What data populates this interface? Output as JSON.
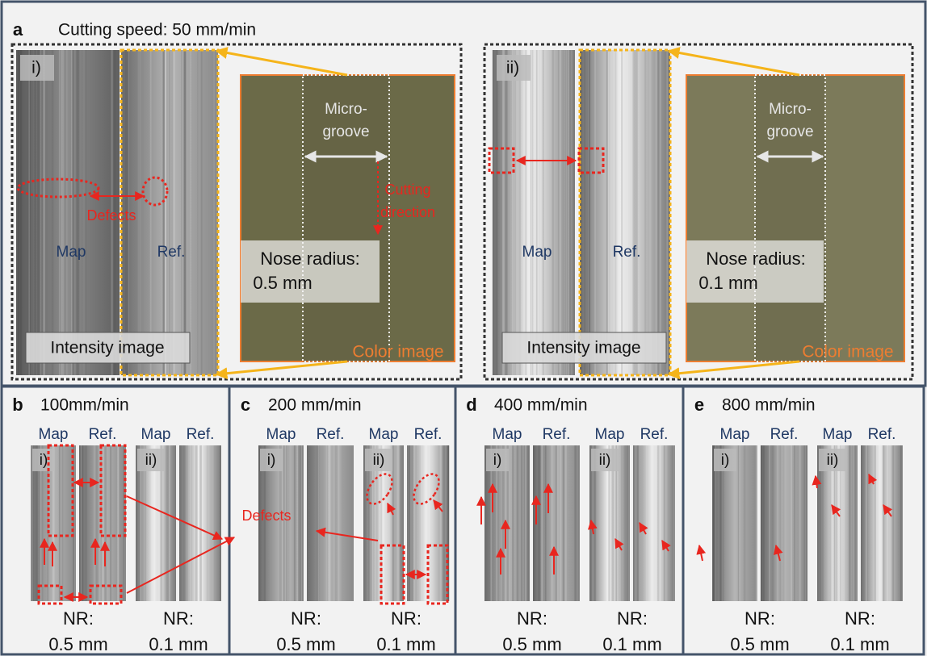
{
  "panel_a": {
    "label": "a",
    "title": "Cutting speed: 50 mm/min",
    "subpanels": [
      {
        "label": "i)",
        "map": "Map",
        "ref": "Ref.",
        "defects": "Defects",
        "groove": [
          "Micro-",
          "groove"
        ],
        "direction": [
          "Cutting",
          "direction"
        ],
        "nose": [
          "Nose radius:",
          "0.5 mm"
        ],
        "intensity": "Intensity image",
        "color": "Color image"
      },
      {
        "label": "ii)",
        "map": "Map",
        "ref": "Ref.",
        "groove": [
          "Micro-",
          "groove"
        ],
        "nose": [
          "Nose radius:",
          "0.1 mm"
        ],
        "intensity": "Intensity image",
        "color": "Color image"
      }
    ]
  },
  "panels": [
    {
      "label": "b",
      "speed": "100mm/min",
      "cols": [
        {
          "label": "i)",
          "map": "Map",
          "ref": "Ref.",
          "nr": [
            "NR:",
            "0.5 mm"
          ]
        },
        {
          "label": "ii)",
          "map": "Map",
          "ref": "Ref.",
          "nr": [
            "NR:",
            "0.1 mm"
          ]
        }
      ]
    },
    {
      "label": "c",
      "speed": "200 mm/min",
      "defects": "Defects",
      "cols": [
        {
          "label": "i)",
          "map": "Map",
          "ref": "Ref.",
          "nr": [
            "NR:",
            "0.5 mm"
          ]
        },
        {
          "label": "ii)",
          "map": "Map",
          "ref": "Ref.",
          "nr": [
            "NR:",
            "0.1 mm"
          ]
        }
      ]
    },
    {
      "label": "d",
      "speed": "400 mm/min",
      "cols": [
        {
          "label": "i)",
          "map": "Map",
          "ref": "Ref.",
          "nr": [
            "NR:",
            "0.5 mm"
          ]
        },
        {
          "label": "ii)",
          "map": "Map",
          "ref": "Ref.",
          "nr": [
            "NR:",
            "0.1 mm"
          ]
        }
      ]
    },
    {
      "label": "e",
      "speed": "800 mm/min",
      "cols": [
        {
          "label": "i)",
          "map": "Map",
          "ref": "Ref.",
          "nr": [
            "NR:",
            "0.5 mm"
          ]
        },
        {
          "label": "ii)",
          "map": "Map",
          "ref": "Ref.",
          "nr": [
            "NR:",
            "0.1 mm"
          ]
        }
      ]
    }
  ]
}
